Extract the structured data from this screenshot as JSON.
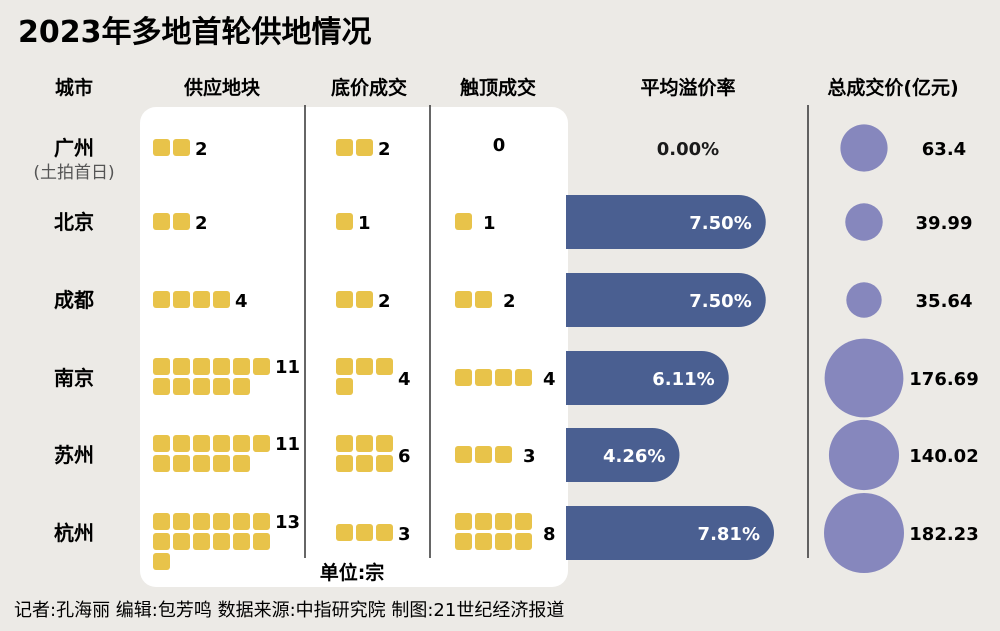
{
  "title": "2023年多地首轮供地情况",
  "headers": {
    "city": "城市",
    "supply": "供应地块",
    "floor": "底价成交",
    "top": "触顶成交",
    "premium": "平均溢价率",
    "total": "总成交价(亿元)"
  },
  "unit_label": "单位:宗",
  "credits": "记者:孔海丽   编辑:包芳鸣   数据来源:中指研究院   制图:21世纪经济报道",
  "colors": {
    "background": "#eceae6",
    "block": "#e8c34a",
    "bar": "#4a5f91",
    "bubble": "#8687bd",
    "panel": "#ffffff",
    "divider": "#333333"
  },
  "chart_data": {
    "type": "table",
    "rows": [
      {
        "city": "广州",
        "city_note": "(土拍首日)",
        "supply": 2,
        "floor": 2,
        "top": 0,
        "premium": "0.00%",
        "premium_value": 0.0,
        "total": "63.4",
        "total_value": 63.4
      },
      {
        "city": "北京",
        "city_note": "",
        "supply": 2,
        "floor": 1,
        "top": 1,
        "premium": "7.50%",
        "premium_value": 7.5,
        "total": "39.99",
        "total_value": 39.99
      },
      {
        "city": "成都",
        "city_note": "",
        "supply": 4,
        "floor": 2,
        "top": 2,
        "premium": "7.50%",
        "premium_value": 7.5,
        "total": "35.64",
        "total_value": 35.64
      },
      {
        "city": "南京",
        "city_note": "",
        "supply": 11,
        "floor": 4,
        "top": 4,
        "premium": "6.11%",
        "premium_value": 6.11,
        "total": "176.69",
        "total_value": 176.69
      },
      {
        "city": "苏州",
        "city_note": "",
        "supply": 11,
        "floor": 6,
        "top": 3,
        "premium": "4.26%",
        "premium_value": 4.26,
        "total": "140.02",
        "total_value": 140.02
      },
      {
        "city": "杭州",
        "city_note": "",
        "supply": 13,
        "floor": 3,
        "top": 8,
        "premium": "7.81%",
        "premium_value": 7.81,
        "total": "182.23",
        "total_value": 182.23
      }
    ]
  }
}
